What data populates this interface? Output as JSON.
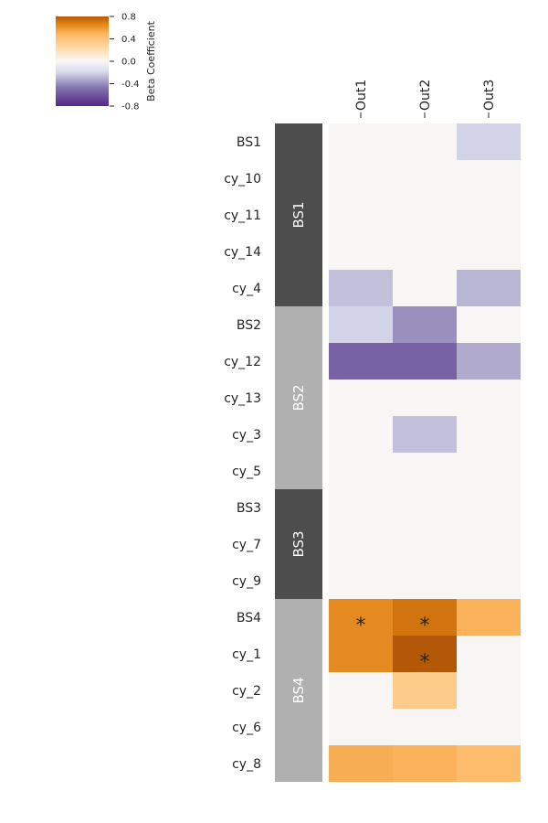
{
  "chart_data": {
    "type": "heatmap",
    "columns": [
      "Out1",
      "Out2",
      "Out3"
    ],
    "rows": [
      "BS1",
      "cy_10",
      "cy_11",
      "cy_14",
      "cy_4",
      "BS2",
      "cy_12",
      "cy_13",
      "cy_3",
      "cy_5",
      "BS3",
      "cy_7",
      "cy_9",
      "BS4",
      "cy_1",
      "cy_2",
      "cy_6",
      "cy_8"
    ],
    "values": [
      [
        0,
        0,
        -0.22
      ],
      [
        0,
        0,
        0
      ],
      [
        0,
        0,
        0
      ],
      [
        0,
        0,
        0
      ],
      [
        -0.27,
        0,
        -0.3
      ],
      [
        -0.22,
        -0.4,
        0
      ],
      [
        -0.55,
        -0.55,
        -0.33
      ],
      [
        0,
        0,
        0
      ],
      [
        0,
        -0.27,
        0
      ],
      [
        0,
        0,
        0
      ],
      [
        0,
        0,
        0
      ],
      [
        0,
        0,
        0
      ],
      [
        0,
        0,
        0
      ],
      [
        0.65,
        0.72,
        0.5
      ],
      [
        0.65,
        0.8,
        0
      ],
      [
        0,
        0.35,
        0
      ],
      [
        0,
        0,
        0
      ],
      [
        0.52,
        0.5,
        0.45
      ]
    ],
    "significance": [
      [
        "",
        "",
        ""
      ],
      [
        "",
        "",
        ""
      ],
      [
        "",
        "",
        ""
      ],
      [
        "",
        "",
        ""
      ],
      [
        "",
        "",
        ""
      ],
      [
        "",
        "",
        ""
      ],
      [
        "",
        "",
        ""
      ],
      [
        "",
        "",
        ""
      ],
      [
        "",
        "",
        ""
      ],
      [
        "",
        "",
        ""
      ],
      [
        "",
        "",
        ""
      ],
      [
        "",
        "",
        ""
      ],
      [
        "",
        "",
        ""
      ],
      [
        "*",
        "*",
        ""
      ],
      [
        "",
        "*",
        ""
      ],
      [
        "",
        "",
        ""
      ],
      [
        "",
        "",
        ""
      ],
      [
        "",
        "",
        ""
      ]
    ],
    "groups": [
      {
        "label": "BS1",
        "start": 0,
        "end": 4,
        "color": "#4d4d4d"
      },
      {
        "label": "BS2",
        "start": 5,
        "end": 9,
        "color": "#b0b0b0"
      },
      {
        "label": "BS3",
        "start": 10,
        "end": 12,
        "color": "#4d4d4d"
      },
      {
        "label": "BS4",
        "start": 13,
        "end": 17,
        "color": "#b0b0b0"
      }
    ],
    "colorbar": {
      "label": "Beta Coefficient",
      "range": [
        -0.8,
        0.8
      ],
      "ticks": [
        "0.8",
        "0.4",
        "0.0",
        "-0.4",
        "-0.8"
      ],
      "tick_values": [
        0.8,
        0.4,
        0.0,
        -0.4,
        -0.8
      ],
      "colormap": "PuOr_r"
    },
    "colors": {
      "neutral": "#f7f6f5",
      "negative_max": "#4d2b87",
      "positive_max": "#b35806"
    }
  }
}
